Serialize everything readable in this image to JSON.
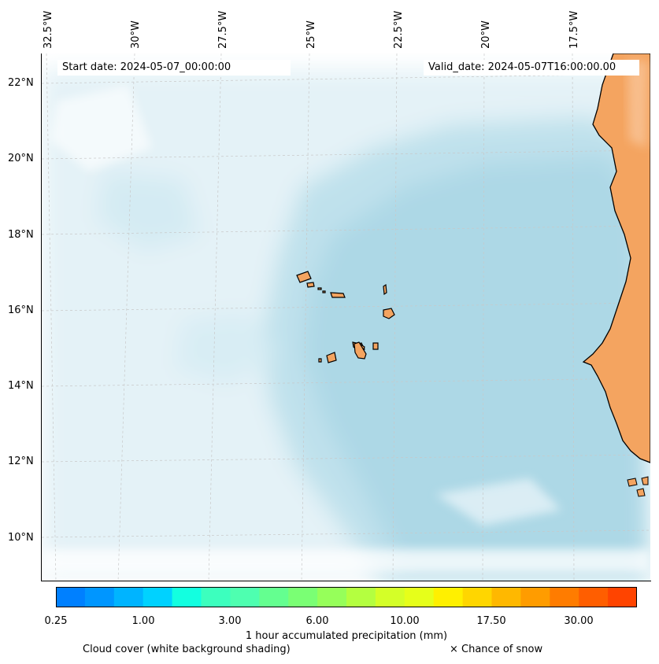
{
  "header": {
    "start_date": "Start date: 2024-05-07_00:00:00",
    "valid_date": "Valid_date: 2024-05-07T16:00:00.00"
  },
  "longitudes": [
    "32.5°W",
    "30°W",
    "27.5°W",
    "25°W",
    "22.5°W",
    "20°W",
    "17.5°W"
  ],
  "latitudes": [
    "22°N",
    "20°N",
    "18°N",
    "16°N",
    "14°N",
    "12°N",
    "10°N"
  ],
  "colorbar": {
    "colors": [
      "#0080ff",
      "#0096ff",
      "#00b4ff",
      "#00d2ff",
      "#13ffe0",
      "#3cffbe",
      "#4effb0",
      "#64ff90",
      "#7aff74",
      "#96ff5a",
      "#b4ff40",
      "#d4ff28",
      "#e6ff1a",
      "#fff000",
      "#ffd600",
      "#ffb800",
      "#ff9c00",
      "#ff7c00",
      "#ff5e00",
      "#ff4400"
    ],
    "tick_labels": [
      "0.25",
      "1.00",
      "3.00",
      "6.00",
      "10.00",
      "17.50",
      "30.00"
    ],
    "label": "1 hour accumulated precipitation (mm)"
  },
  "legend": {
    "cloud": "Cloud cover (white background shading)",
    "snow": "× Chance of snow"
  },
  "colors": {
    "ocean_cloud": "#add8e6",
    "land": "#f4a460"
  }
}
